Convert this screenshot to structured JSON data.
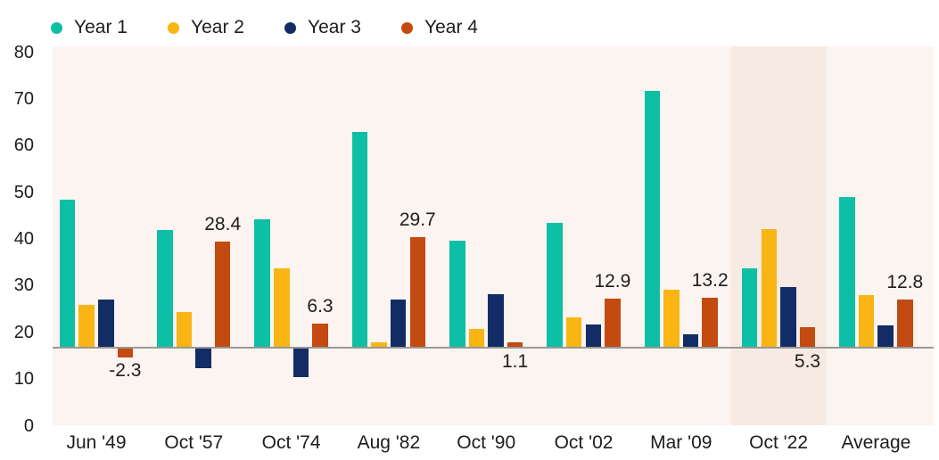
{
  "page": {
    "background": "#ffffff"
  },
  "legend": {
    "position": "top",
    "items": [
      {
        "label": "Year 1",
        "color": "#0dbfa5"
      },
      {
        "label": "Year 2",
        "color": "#f8b513"
      },
      {
        "label": "Year 3",
        "color": "#122c66"
      },
      {
        "label": "Year 4",
        "color": "#c34a10"
      }
    ]
  },
  "chart_data": {
    "type": "bar",
    "title": "",
    "categories": [
      "Jun '49",
      "Oct '57",
      "Oct '74",
      "Aug '82",
      "Oct '90",
      "Oct '02",
      "Mar '09",
      "Oct '22",
      "Average"
    ],
    "series": [
      {
        "name": "Year 1",
        "color": "#0dbfa5",
        "values": [
          39.8,
          31.5,
          34.5,
          58.0,
          28.6,
          33.5,
          69.1,
          21.2,
          40.5
        ]
      },
      {
        "name": "Year 2",
        "color": "#f8b513",
        "values": [
          11.3,
          9.4,
          21.2,
          1.3,
          4.8,
          8.0,
          15.5,
          31.7,
          14.0
        ]
      },
      {
        "name": "Year 3",
        "color": "#122c66",
        "values": [
          12.7,
          -5.2,
          -7.7,
          12.8,
          14.1,
          6.1,
          3.4,
          16.1,
          5.8
        ]
      },
      {
        "name": "Year 4",
        "color": "#c34a10",
        "values": [
          -2.3,
          28.4,
          6.3,
          29.7,
          1.1,
          12.9,
          13.2,
          5.3,
          12.8
        ],
        "data_labels": [
          {
            "text": "-2.3",
            "pos": "below"
          },
          {
            "text": "28.4",
            "pos": "above"
          },
          {
            "text": "6.3",
            "pos": "above"
          },
          {
            "text": "29.7",
            "pos": "above"
          },
          {
            "text": "1.1",
            "pos": "below"
          },
          {
            "text": "12.9",
            "pos": "above"
          },
          {
            "text": "13.2",
            "pos": "above"
          },
          {
            "text": "5.3",
            "pos": "below"
          },
          {
            "text": "12.8",
            "pos": "above"
          }
        ]
      }
    ],
    "y_axis": {
      "ticks": [
        0,
        10,
        20,
        30,
        40,
        50,
        60,
        70,
        80
      ],
      "range": [
        0,
        80
      ]
    },
    "highlight": {
      "category": "Oct '22",
      "color": "#f7eae3"
    },
    "plot_background": "#fbf4f0",
    "baseline_color": "#9a9894",
    "text_color": "#1d1d1b",
    "grid": false,
    "legend_position": "top"
  }
}
